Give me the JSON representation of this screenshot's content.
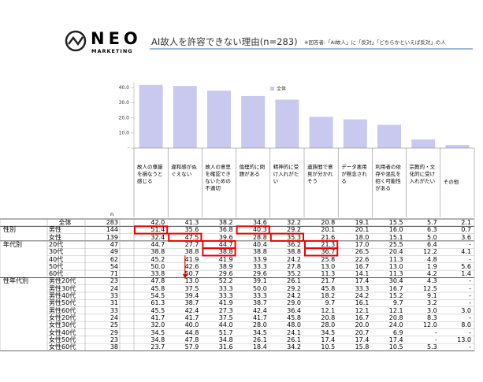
{
  "logo": {
    "name": "NEO",
    "sub": "MARKETING"
  },
  "title": "AI故人を許容できない理由(n=283)",
  "note": "※回答者:「AI故人」に「反対」「どちらかといえば反対」の人",
  "chart_data": {
    "type": "bar",
    "categories": [
      "故人の尊厳を損なうと感じる",
      "違和感がぬぐえない",
      "故人の意思を確認できないための不適切",
      "倫理的に問題がある",
      "精神的に受け入れがたい",
      "遺族間で意見が分かれそう",
      "データ悪用が懸念される",
      "利用者の依存や混乱を招く可能性がある",
      "宗教的・文化的に受け入れがたい",
      "その他"
    ],
    "series": [
      {
        "name": "全体",
        "color": "#c9c9ef",
        "values": [
          42.0,
          41.3,
          38.2,
          34.6,
          32.2,
          20.8,
          19.1,
          15.5,
          5.7,
          2.1
        ]
      }
    ],
    "ylim": [
      0,
      44
    ],
    "yticks": [
      {
        "value": 0,
        "label": "-"
      },
      {
        "value": 10,
        "label": "10.0"
      },
      {
        "value": 20,
        "label": "20.0"
      },
      {
        "value": 30,
        "label": "30.0"
      },
      {
        "value": 40,
        "label": "40.0"
      }
    ],
    "legend": "top"
  },
  "table": {
    "n_header": "n",
    "rows": [
      {
        "label": "全体",
        "n": "283",
        "values": [
          "42.0",
          "41.3",
          "38.2",
          "34.6",
          "32.2",
          "20.8",
          "19.1",
          "15.5",
          "5.7",
          "2.1"
        ]
      },
      {
        "group": "性別",
        "label": "男性",
        "n": "144",
        "values": [
          "51.4",
          "35.6",
          "36.8",
          "40.3",
          "29.2",
          "20.1",
          "20.1",
          "16.0",
          "6.3",
          "0.7"
        ]
      },
      {
        "label": "女性",
        "n": "139",
        "values": [
          "32.4",
          "47.5",
          "39.6",
          "28.8",
          "35.3",
          "21.6",
          "18.0",
          "15.1",
          "5.0",
          "3.6"
        ]
      },
      {
        "group": "年代別",
        "label": "20代",
        "n": "47",
        "values": [
          "44.7",
          "27.7",
          "44.7",
          "40.4",
          "36.2",
          "21.3",
          "17.0",
          "25.5",
          "6.4",
          "-"
        ]
      },
      {
        "label": "30代",
        "n": "49",
        "values": [
          "38.8",
          "38.8",
          "38.8",
          "38.8",
          "38.8",
          "36.7",
          "26.5",
          "20.4",
          "12.2",
          "4.1"
        ]
      },
      {
        "label": "40代",
        "n": "62",
        "values": [
          "45.2",
          "41.9",
          "41.9",
          "33.9",
          "24.2",
          "25.8",
          "22.6",
          "11.3",
          "4.8",
          "-"
        ]
      },
      {
        "label": "50代",
        "n": "54",
        "values": [
          "50.0",
          "42.6",
          "38.9",
          "33.3",
          "27.8",
          "13.0",
          "16.7",
          "13.0",
          "1.9",
          "5.6"
        ]
      },
      {
        "label": "60代",
        "n": "71",
        "values": [
          "33.8",
          "50.7",
          "29.6",
          "29.6",
          "35.2",
          "11.3",
          "14.1",
          "11.3",
          "4.2",
          "1.4"
        ]
      },
      {
        "group": "性年代別",
        "label": "男性20代",
        "n": "23",
        "values": [
          "47.8",
          "13.0",
          "52.2",
          "39.1",
          "26.1",
          "21.7",
          "17.4",
          "30.4",
          "4.3",
          "-"
        ]
      },
      {
        "label": "男性30代",
        "n": "24",
        "values": [
          "45.8",
          "37.5",
          "33.3",
          "50.0",
          "29.2",
          "45.8",
          "33.3",
          "16.7",
          "12.5",
          "-"
        ]
      },
      {
        "label": "男性40代",
        "n": "33",
        "values": [
          "54.5",
          "39.4",
          "33.3",
          "33.3",
          "24.2",
          "18.2",
          "24.2",
          "15.2",
          "9.1",
          "-"
        ]
      },
      {
        "label": "男性50代",
        "n": "31",
        "values": [
          "61.3",
          "38.7",
          "41.9",
          "38.7",
          "29.0",
          "9.7",
          "16.1",
          "9.7",
          "3.2",
          "-"
        ]
      },
      {
        "label": "男性60代",
        "n": "33",
        "values": [
          "45.5",
          "42.4",
          "27.3",
          "42.4",
          "36.4",
          "12.1",
          "12.1",
          "12.1",
          "3.0",
          "3.0"
        ]
      },
      {
        "label": "女性20代",
        "n": "24",
        "values": [
          "41.7",
          "41.7",
          "37.5",
          "41.7",
          "45.8",
          "20.8",
          "16.7",
          "20.8",
          "8.3",
          "-"
        ]
      },
      {
        "label": "女性30代",
        "n": "25",
        "values": [
          "32.0",
          "40.0",
          "44.0",
          "28.0",
          "48.0",
          "28.0",
          "20.0",
          "24.0",
          "12.0",
          "8.0"
        ]
      },
      {
        "label": "女性40代",
        "n": "29",
        "values": [
          "34.5",
          "44.8",
          "51.7",
          "34.5",
          "24.1",
          "34.5",
          "20.7",
          "6.9",
          "-",
          "-"
        ]
      },
      {
        "label": "女性50代",
        "n": "23",
        "values": [
          "34.8",
          "47.8",
          "34.8",
          "26.1",
          "26.1",
          "17.4",
          "17.4",
          "17.4",
          "-",
          "13.0"
        ]
      },
      {
        "label": "女性60代",
        "n": "38",
        "values": [
          "23.7",
          "57.9",
          "31.6",
          "18.4",
          "34.2",
          "10.5",
          "15.8",
          "10.5",
          "5.3",
          "-"
        ]
      }
    ]
  }
}
